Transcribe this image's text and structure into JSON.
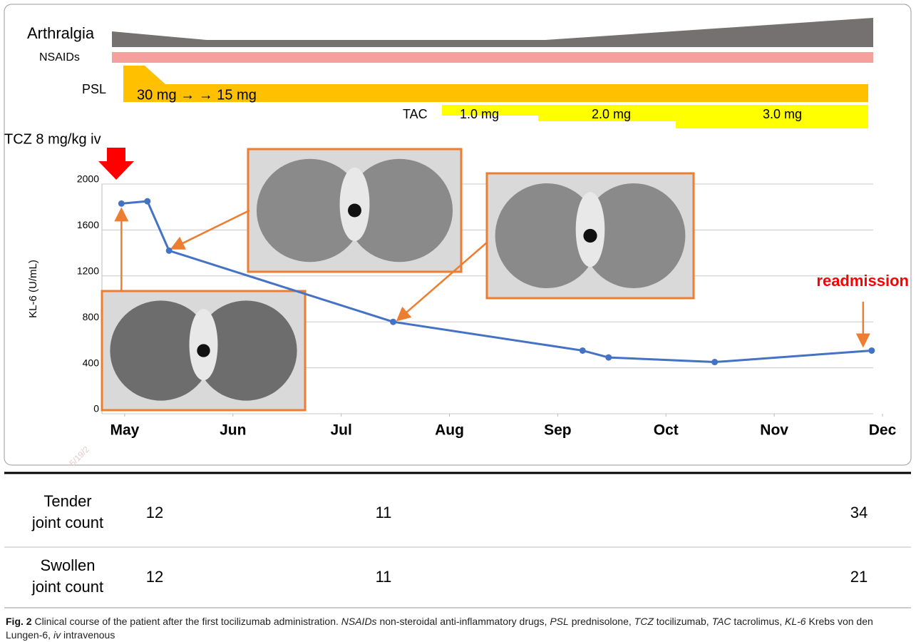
{
  "timeline": {
    "arthralgia": "Arthralgia",
    "nsaids": "NSAIDs",
    "psl": {
      "label": "PSL",
      "dose": "30 mg → → 15 mg"
    },
    "tac": {
      "label": "TAC",
      "doses": [
        "1.0 mg",
        "2.0 mg",
        "3.0 mg"
      ]
    },
    "tcz": "TCZ 8 mg/kg iv"
  },
  "chart_data": {
    "type": "line",
    "ylabel": "KL-6 (U/mL)",
    "x": [
      -0.03,
      0.21,
      0.41,
      2.48,
      4.23,
      4.47,
      5.45,
      6.9
    ],
    "values": [
      1830,
      1850,
      1420,
      800,
      550,
      490,
      450,
      550
    ],
    "color": "#4472c4",
    "xlim": [
      -0.21,
      7
    ],
    "xticks": [
      {
        "value": 0,
        "label": "May"
      },
      {
        "value": 1,
        "label": "Jun"
      },
      {
        "value": 2,
        "label": "Jul"
      },
      {
        "value": 3,
        "label": "Aug"
      },
      {
        "value": 4,
        "label": "Sep"
      },
      {
        "value": 5,
        "label": "Oct"
      },
      {
        "value": 6,
        "label": "Nov"
      },
      {
        "value": 7,
        "label": "Dec"
      }
    ],
    "ylim": [
      0,
      2000
    ],
    "yticks": [
      0,
      400,
      800,
      1200,
      1600,
      2000
    ],
    "grid": true,
    "annotation": "readmission",
    "watermark": "5/19/2"
  },
  "table": {
    "rows": [
      {
        "label": [
          "Tender",
          "joint count"
        ],
        "values": [
          "12",
          "11",
          "34"
        ]
      },
      {
        "label": [
          "Swollen",
          "joint count"
        ],
        "values": [
          "12",
          "11",
          "21"
        ]
      }
    ]
  },
  "caption": {
    "label": "Fig. 2",
    "parts": [
      {
        "text": " Clinical course of the patient after the first tocilizumab administration. ",
        "italic": false
      },
      {
        "text": "NSAIDs",
        "italic": true
      },
      {
        "text": " non-steroidal anti-inflammatory drugs, ",
        "italic": false
      },
      {
        "text": "PSL",
        "italic": true
      },
      {
        "text": " prednisolone, ",
        "italic": false
      },
      {
        "text": "TCZ",
        "italic": true
      },
      {
        "text": " tocilizumab, ",
        "italic": false
      },
      {
        "text": "TAC",
        "italic": true
      },
      {
        "text": " tacrolimus, ",
        "italic": false
      },
      {
        "text": "KL-6",
        "italic": true
      },
      {
        "text": " Krebs von den Lungen-6, ",
        "italic": false
      },
      {
        "text": "iv",
        "italic": true
      },
      {
        "text": " intravenous",
        "italic": false
      }
    ]
  }
}
